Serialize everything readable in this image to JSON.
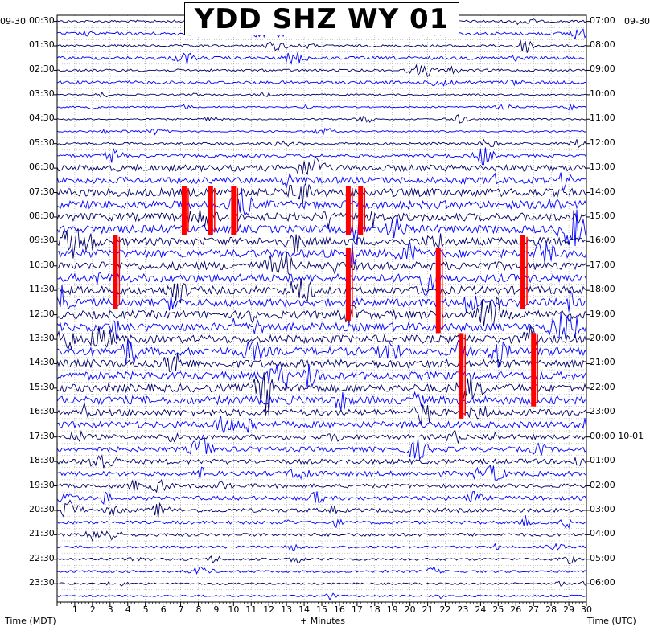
{
  "chart_data": {
    "type": "line",
    "title": "YDD SHZ WY 01",
    "top_left_date": "09-30",
    "top_right_date": "09-30",
    "xlabel": "+ Minutes",
    "left_axis_label": "Time (MDT)",
    "right_axis_label": "Time (UTC)",
    "x_ticks": [
      "1",
      "2",
      "3",
      "4",
      "5",
      "6",
      "7",
      "8",
      "9",
      "10",
      "11",
      "12",
      "13",
      "14",
      "15",
      "16",
      "17",
      "18",
      "19",
      "20",
      "21",
      "22",
      "23",
      "24",
      "25",
      "26",
      "27",
      "28",
      "29",
      "30"
    ],
    "xlim": [
      0,
      30
    ],
    "left_hour_labels": [
      "00:30",
      "01:30",
      "02:30",
      "03:30",
      "04:30",
      "05:30",
      "06:30",
      "07:30",
      "08:30",
      "09:30",
      "10:30",
      "11:30",
      "12:30",
      "13:30",
      "14:30",
      "15:30",
      "16:30",
      "17:30",
      "18:30",
      "19:30",
      "20:30",
      "21:30",
      "22:30",
      "23:30"
    ],
    "right_hour_labels": [
      "07:00",
      "08:00",
      "09:00",
      "10:00",
      "11:00",
      "12:00",
      "13:00",
      "14:00",
      "15:00",
      "16:00",
      "17:00",
      "18:00",
      "19:00",
      "20:00",
      "21:00",
      "22:00",
      "23:00",
      "00:00 10-01",
      "01:00",
      "02:00",
      "03:00",
      "04:00",
      "05:00",
      "06:00"
    ],
    "trace_rows": 48,
    "trace_colors": [
      "#000066",
      "#0000ff"
    ],
    "clip_color": "#ff0000",
    "grid": true,
    "row_amplitude": [
      1.5,
      2,
      1.5,
      2,
      1.5,
      2,
      1,
      1,
      1,
      1,
      1.5,
      2,
      4,
      4,
      5,
      5,
      5,
      5,
      5,
      5,
      5,
      5,
      5,
      5,
      5,
      5,
      5,
      5,
      5,
      5,
      5,
      5,
      4,
      4,
      3,
      3,
      3,
      3,
      2.5,
      2.5,
      2.5,
      2,
      2,
      1.5,
      1.5,
      1.5,
      1.2,
      1.2
    ],
    "clipped_events": [
      {
        "minute": 7.2,
        "row_start": 14,
        "row_end": 17
      },
      {
        "minute": 8.7,
        "row_start": 14,
        "row_end": 17
      },
      {
        "minute": 10.0,
        "row_start": 14,
        "row_end": 17
      },
      {
        "minute": 16.5,
        "row_start": 14,
        "row_end": 17
      },
      {
        "minute": 17.2,
        "row_start": 14,
        "row_end": 17
      },
      {
        "minute": 3.3,
        "row_start": 18,
        "row_end": 23
      },
      {
        "minute": 16.5,
        "row_start": 19,
        "row_end": 24
      },
      {
        "minute": 21.6,
        "row_start": 19,
        "row_end": 25
      },
      {
        "minute": 26.4,
        "row_start": 18,
        "row_end": 23
      },
      {
        "minute": 22.9,
        "row_start": 26,
        "row_end": 32
      },
      {
        "minute": 27.0,
        "row_start": 26,
        "row_end": 31
      }
    ]
  }
}
